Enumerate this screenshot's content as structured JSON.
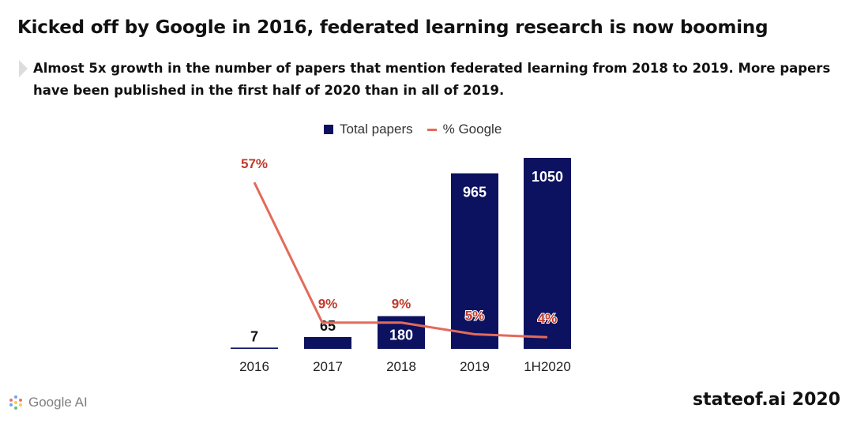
{
  "header": {
    "title": "Kicked off by Google in 2016, federated learning research is now booming",
    "subtitle": "Almost 5x growth in the number of papers that mention federated learning from 2018 to 2019. More papers have been published in the first half of 2020 than in all of 2019."
  },
  "legend": {
    "bar_label": "Total papers",
    "line_label": "% Google"
  },
  "chart_data": {
    "type": "bar",
    "title": "",
    "xlabel": "",
    "ylabel": "",
    "categories": [
      "2016",
      "2017",
      "2018",
      "2019",
      "1H2020"
    ],
    "series": [
      {
        "name": "Total papers",
        "type": "bar",
        "values": [
          7,
          65,
          180,
          965,
          1050
        ],
        "labels": [
          "7",
          "65",
          "180",
          "965",
          "1050"
        ],
        "color": "#0c1260"
      },
      {
        "name": "% Google",
        "type": "line",
        "values": [
          57,
          9,
          9,
          5,
          4
        ],
        "labels": [
          "57%",
          "9%",
          "9%",
          "5%",
          "4%"
        ],
        "color": "#e36a5a"
      }
    ],
    "ylim": [
      0,
      1050
    ],
    "ylim_secondary": [
      0,
      60
    ],
    "grid": false
  },
  "colors": {
    "bar": "#0c1260",
    "line": "#e36a5a",
    "line_label": "#c0392b"
  },
  "footer": {
    "source": "stateof.ai 2020",
    "logo_text": "Google AI"
  }
}
